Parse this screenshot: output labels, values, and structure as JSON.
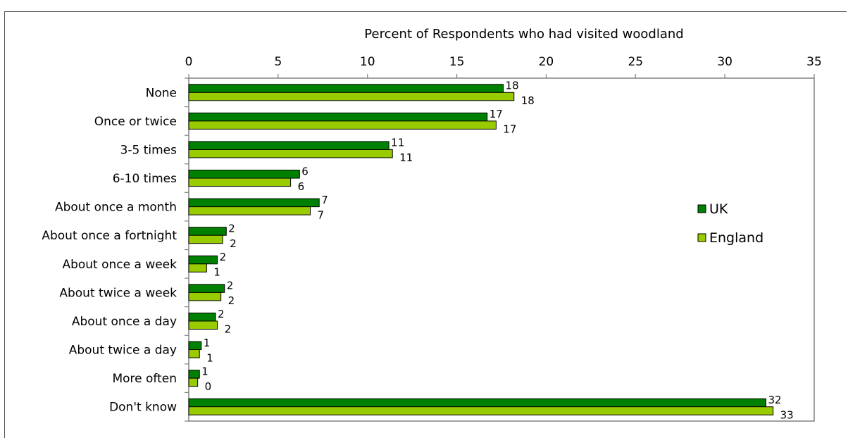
{
  "chart_data": {
    "type": "bar",
    "orientation": "horizontal",
    "title": "Percent of Respondents who had visited woodland",
    "xlim": [
      0,
      35
    ],
    "x_ticks": [
      0,
      5,
      10,
      15,
      20,
      25,
      30,
      35
    ],
    "x_axis_position": "top",
    "grid": false,
    "legend_position": "right",
    "categories": [
      "None",
      "Once or twice",
      "3-5 times",
      "6-10 times",
      "About once a month",
      "About once a fortnight",
      "About once a week",
      "About twice a week",
      "About once a day",
      "About twice a day",
      "More often",
      "Don't know"
    ],
    "series": [
      {
        "name": "UK",
        "color": "#008000",
        "values": [
          17.6,
          16.7,
          11.2,
          6.2,
          7.3,
          2.1,
          1.6,
          2.0,
          1.5,
          0.7,
          0.6,
          32.3
        ],
        "labels": [
          "18",
          "17",
          "11",
          "6",
          "7",
          "2",
          "2",
          "2",
          "2",
          "1",
          "1",
          "32"
        ]
      },
      {
        "name": "England",
        "color": "#99cc00",
        "values": [
          18.2,
          17.2,
          11.4,
          5.7,
          6.8,
          1.9,
          1.0,
          1.8,
          1.6,
          0.6,
          0.5,
          32.7
        ],
        "labels": [
          "18",
          "17",
          "11",
          "6",
          "7",
          "2",
          "1",
          "2",
          "2",
          "1",
          "0",
          "33"
        ]
      }
    ]
  }
}
